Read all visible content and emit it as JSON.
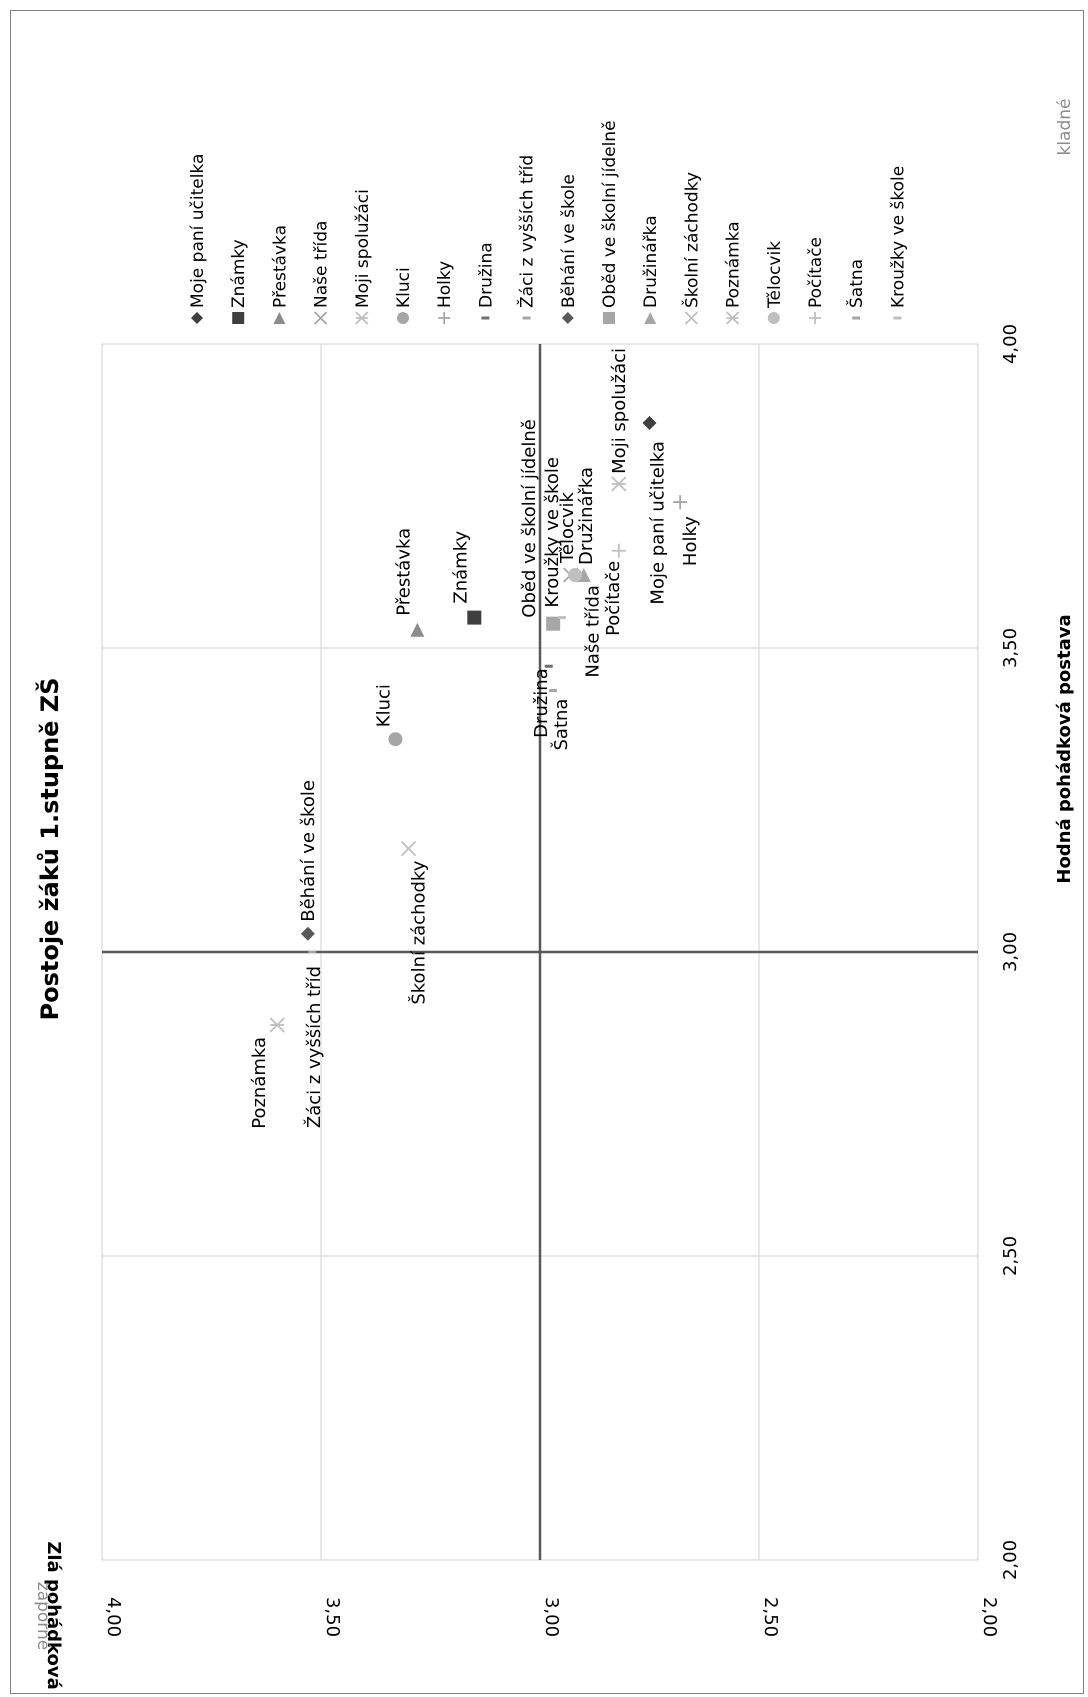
{
  "chart_data": {
    "type": "scatter",
    "title": "Postoje žáků 1.stupně ZŠ",
    "xlabel": "Hodná pohádková postava",
    "ylabel": "Zlá pohádková postava",
    "xlim": [
      2.0,
      4.0
    ],
    "ylim": [
      2.0,
      4.0
    ],
    "x_ticks": [
      "2,00",
      "2,50",
      "3,00",
      "3,50",
      "4,00"
    ],
    "y_ticks": [
      "2,00",
      "2,50",
      "3,00",
      "3,50",
      "4,00"
    ],
    "grid": true,
    "legend_position": "right",
    "quadrant_labels": {
      "positive": "kladné",
      "negative": "záporné"
    },
    "series": [
      {
        "name": "Moje paní učitelka",
        "marker": "diamond",
        "color": "#3f3f3f",
        "x": 3.87,
        "y": 2.75
      },
      {
        "name": "Známky",
        "marker": "square",
        "color": "#3f3f3f",
        "x": 3.55,
        "y": 3.15
      },
      {
        "name": "Přestávka",
        "marker": "triangle",
        "color": "#8c8c8c",
        "x": 3.53,
        "y": 3.28
      },
      {
        "name": "Naše třída",
        "marker": "x",
        "color": "#a6a6a6",
        "x": 3.62,
        "y": 2.93
      },
      {
        "name": "Moji spolužáci",
        "marker": "star",
        "color": "#bfbfbf",
        "x": 3.77,
        "y": 2.82
      },
      {
        "name": "Kluci",
        "marker": "circle",
        "color": "#a6a6a6",
        "x": 3.35,
        "y": 3.33
      },
      {
        "name": "Holky",
        "marker": "plus",
        "color": "#a6a6a6",
        "x": 3.74,
        "y": 2.68
      },
      {
        "name": "Družina",
        "marker": "dash",
        "color": "#6f6f6f",
        "x": 3.47,
        "y": 2.98
      },
      {
        "name": "Žáci z vyšších tříd",
        "marker": "dash",
        "color": "#a6a6a6",
        "x": 3.0,
        "y": 3.52
      },
      {
        "name": "Běhání ve škole",
        "marker": "diamond",
        "color": "#595959",
        "x": 3.03,
        "y": 3.53
      },
      {
        "name": "Oběd ve školní jídelně",
        "marker": "square",
        "color": "#a6a6a6",
        "x": 3.54,
        "y": 2.97
      },
      {
        "name": "Družinářka",
        "marker": "triangle",
        "color": "#a6a6a6",
        "x": 3.62,
        "y": 2.9
      },
      {
        "name": "Školní záchodky",
        "marker": "x",
        "color": "#bfbfbf",
        "x": 3.17,
        "y": 3.3
      },
      {
        "name": "Poznámka",
        "marker": "star",
        "color": "#bfbfbf",
        "x": 2.88,
        "y": 3.6
      },
      {
        "name": "Tělocvik",
        "marker": "circle",
        "color": "#bfbfbf",
        "x": 3.62,
        "y": 2.92
      },
      {
        "name": "Počítače",
        "marker": "plus",
        "color": "#bfbfbf",
        "x": 3.66,
        "y": 2.82
      },
      {
        "name": "Šatna",
        "marker": "dash",
        "color": "#a6a6a6",
        "x": 3.43,
        "y": 2.97
      },
      {
        "name": "Kroužky ve škole",
        "marker": "dash",
        "color": "#bfbfbf",
        "x": 3.55,
        "y": 2.95
      }
    ]
  }
}
